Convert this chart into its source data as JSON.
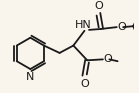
{
  "bg_color": "#faf5ec",
  "bond_color": "#1a1a1a",
  "lw": 1.3,
  "fig_width": 1.39,
  "fig_height": 0.93,
  "dpi": 100,
  "xlim": [
    0,
    139
  ],
  "ylim": [
    0,
    93
  ]
}
